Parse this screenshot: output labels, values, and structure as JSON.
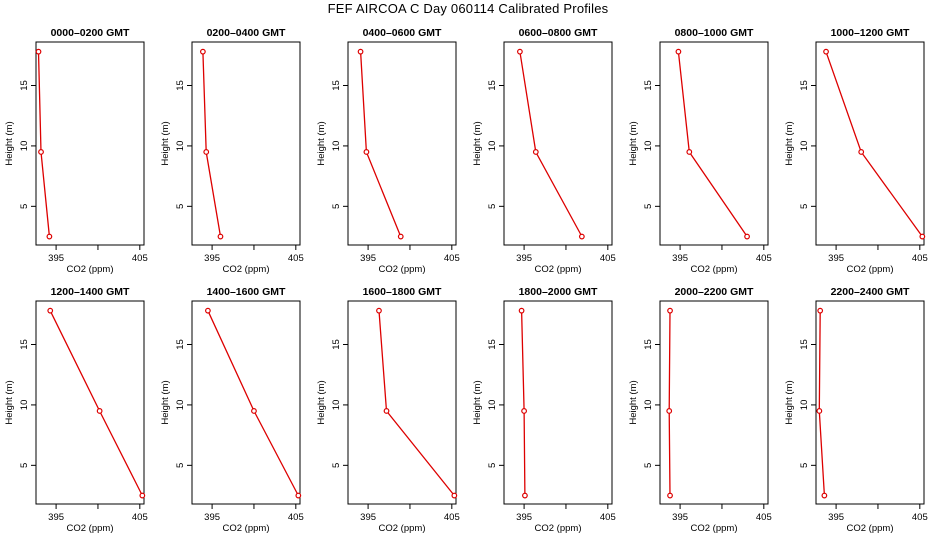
{
  "figure": {
    "title": "FEF AIRCOA C  Day 060114  Calibrated Profiles",
    "line_color": "#dd0000",
    "marker_color": "#dd0000"
  },
  "chart_data": [
    {
      "type": "line",
      "title": "0000–0200 GMT",
      "xlabel": "CO2 (ppm)",
      "ylabel": "Height (m)",
      "xlim": [
        392.6,
        405.5
      ],
      "ylim": [
        1.8,
        18.6
      ],
      "xticks": [
        395,
        400,
        405
      ],
      "xtick_labels": [
        "395",
        "",
        "405"
      ],
      "yticks": [
        5,
        10,
        15
      ],
      "x": [
        392.9,
        393.2,
        394.2
      ],
      "y": [
        17.8,
        9.5,
        2.5
      ]
    },
    {
      "type": "line",
      "title": "0200–0400 GMT",
      "xlabel": "CO2 (ppm)",
      "ylabel": "Height (m)",
      "xlim": [
        392.6,
        405.5
      ],
      "ylim": [
        1.8,
        18.6
      ],
      "xticks": [
        395,
        400,
        405
      ],
      "xtick_labels": [
        "395",
        "",
        "405"
      ],
      "yticks": [
        5,
        10,
        15
      ],
      "x": [
        393.9,
        394.3,
        396.0
      ],
      "y": [
        17.8,
        9.5,
        2.5
      ]
    },
    {
      "type": "line",
      "title": "0400–0600 GMT",
      "xlabel": "CO2 (ppm)",
      "ylabel": "Height (m)",
      "xlim": [
        392.6,
        405.5
      ],
      "ylim": [
        1.8,
        18.6
      ],
      "xticks": [
        395,
        400,
        405
      ],
      "xtick_labels": [
        "395",
        "",
        "405"
      ],
      "yticks": [
        5,
        10,
        15
      ],
      "x": [
        394.1,
        394.8,
        398.9
      ],
      "y": [
        17.8,
        9.5,
        2.5
      ]
    },
    {
      "type": "line",
      "title": "0600–0800 GMT",
      "xlabel": "CO2 (ppm)",
      "ylabel": "Height (m)",
      "xlim": [
        392.6,
        405.5
      ],
      "ylim": [
        1.8,
        18.6
      ],
      "xticks": [
        395,
        400,
        405
      ],
      "xtick_labels": [
        "395",
        "",
        "405"
      ],
      "yticks": [
        5,
        10,
        15
      ],
      "x": [
        394.5,
        396.4,
        401.9
      ],
      "y": [
        17.8,
        9.5,
        2.5
      ]
    },
    {
      "type": "line",
      "title": "0800–1000 GMT",
      "xlabel": "CO2 (ppm)",
      "ylabel": "Height (m)",
      "xlim": [
        392.6,
        405.5
      ],
      "ylim": [
        1.8,
        18.6
      ],
      "xticks": [
        395,
        400,
        405
      ],
      "xtick_labels": [
        "395",
        "",
        "405"
      ],
      "yticks": [
        5,
        10,
        15
      ],
      "x": [
        394.8,
        396.1,
        403.0
      ],
      "y": [
        17.8,
        9.5,
        2.5
      ]
    },
    {
      "type": "line",
      "title": "1000–1200 GMT",
      "xlabel": "CO2 (ppm)",
      "ylabel": "Height (m)",
      "xlim": [
        392.6,
        405.5
      ],
      "ylim": [
        1.8,
        18.6
      ],
      "xticks": [
        395,
        400,
        405
      ],
      "xtick_labels": [
        "395",
        "",
        "405"
      ],
      "yticks": [
        5,
        10,
        15
      ],
      "x": [
        393.8,
        398.0,
        405.3
      ],
      "y": [
        17.8,
        9.5,
        2.5
      ]
    },
    {
      "type": "line",
      "title": "1200–1400 GMT",
      "xlabel": "CO2 (ppm)",
      "ylabel": "Height (m)",
      "xlim": [
        392.6,
        405.5
      ],
      "ylim": [
        1.8,
        18.6
      ],
      "xticks": [
        395,
        400,
        405
      ],
      "xtick_labels": [
        "395",
        "",
        "405"
      ],
      "yticks": [
        5,
        10,
        15
      ],
      "x": [
        394.3,
        400.2,
        405.3
      ],
      "y": [
        17.8,
        9.5,
        2.5
      ]
    },
    {
      "type": "line",
      "title": "1400–1600 GMT",
      "xlabel": "CO2 (ppm)",
      "ylabel": "Height (m)",
      "xlim": [
        392.6,
        405.5
      ],
      "ylim": [
        1.8,
        18.6
      ],
      "xticks": [
        395,
        400,
        405
      ],
      "xtick_labels": [
        "395",
        "",
        "405"
      ],
      "yticks": [
        5,
        10,
        15
      ],
      "x": [
        394.5,
        400.0,
        405.3
      ],
      "y": [
        17.8,
        9.5,
        2.5
      ]
    },
    {
      "type": "line",
      "title": "1600–1800 GMT",
      "xlabel": "CO2 (ppm)",
      "ylabel": "Height (m)",
      "xlim": [
        392.6,
        405.5
      ],
      "ylim": [
        1.8,
        18.6
      ],
      "xticks": [
        395,
        400,
        405
      ],
      "xtick_labels": [
        "395",
        "",
        "405"
      ],
      "yticks": [
        5,
        10,
        15
      ],
      "x": [
        396.3,
        397.2,
        405.3
      ],
      "y": [
        17.8,
        9.5,
        2.5
      ]
    },
    {
      "type": "line",
      "title": "1800–2000 GMT",
      "xlabel": "CO2 (ppm)",
      "ylabel": "Height (m)",
      "xlim": [
        392.6,
        405.5
      ],
      "ylim": [
        1.8,
        18.6
      ],
      "xticks": [
        395,
        400,
        405
      ],
      "xtick_labels": [
        "395",
        "",
        "405"
      ],
      "yticks": [
        5,
        10,
        15
      ],
      "x": [
        394.7,
        395.0,
        395.1
      ],
      "y": [
        17.8,
        9.5,
        2.5
      ]
    },
    {
      "type": "line",
      "title": "2000–2200 GMT",
      "xlabel": "CO2 (ppm)",
      "ylabel": "Height (m)",
      "xlim": [
        392.6,
        405.5
      ],
      "ylim": [
        1.8,
        18.6
      ],
      "xticks": [
        395,
        400,
        405
      ],
      "xtick_labels": [
        "395",
        "",
        "405"
      ],
      "yticks": [
        5,
        10,
        15
      ],
      "x": [
        393.8,
        393.7,
        393.8
      ],
      "y": [
        17.8,
        9.5,
        2.5
      ]
    },
    {
      "type": "line",
      "title": "2200–2400 GMT",
      "xlabel": "CO2 (ppm)",
      "ylabel": "Height (m)",
      "xlim": [
        392.6,
        405.5
      ],
      "ylim": [
        1.8,
        18.6
      ],
      "xticks": [
        395,
        400,
        405
      ],
      "xtick_labels": [
        "395",
        "",
        "405"
      ],
      "yticks": [
        5,
        10,
        15
      ],
      "x": [
        393.1,
        393.0,
        393.6
      ],
      "y": [
        17.8,
        9.5,
        2.5
      ]
    }
  ]
}
